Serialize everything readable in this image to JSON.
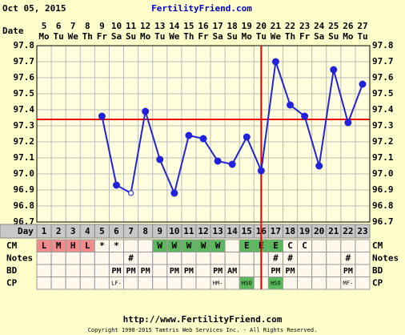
{
  "header": {
    "date": "Oct 05, 2015",
    "site": "FertilityFriend.com"
  },
  "chart_data": {
    "type": "line",
    "date_label": "Date",
    "dates": [
      5,
      6,
      7,
      8,
      9,
      10,
      11,
      12,
      13,
      14,
      15,
      16,
      17,
      18,
      19,
      20,
      21,
      22,
      23,
      24,
      25,
      26,
      27
    ],
    "weekdays": [
      "Mo",
      "Tu",
      "We",
      "Th",
      "Fr",
      "Sa",
      "Su",
      "Mo",
      "Tu",
      "We",
      "Th",
      "Fr",
      "Sa",
      "Su",
      "Mo",
      "Tu",
      "We",
      "Th",
      "Fr",
      "Sa",
      "Su",
      "Mo",
      "Tu"
    ],
    "day_label": "Day",
    "days": [
      1,
      2,
      3,
      4,
      5,
      6,
      7,
      8,
      9,
      10,
      11,
      12,
      13,
      14,
      15,
      16,
      17,
      18,
      19,
      20,
      21,
      22,
      23
    ],
    "values": [
      null,
      null,
      null,
      null,
      97.36,
      96.93,
      96.88,
      97.39,
      97.09,
      96.88,
      97.24,
      97.22,
      97.08,
      97.06,
      97.23,
      97.02,
      97.7,
      97.43,
      97.36,
      97.05,
      97.65,
      97.32,
      97.56
    ],
    "color": "#2222dd",
    "hollow_days": [
      7
    ],
    "coverline": 97.34,
    "ovulation_day": 16,
    "marker_line_color": "#ee0000",
    "ylim": [
      96.7,
      97.8
    ],
    "yticks": [
      96.7,
      96.8,
      96.9,
      {
        "value": 97.0,
        "label": "97.0"
      },
      97.1,
      97.2,
      97.3,
      97.4,
      97.5,
      97.6,
      97.7,
      97.8
    ],
    "grid": true,
    "rows": [
      {
        "label": "CM",
        "cells": [
          "L",
          "M",
          "H",
          "L",
          "*",
          "*",
          null,
          null,
          "W",
          "W",
          "W",
          "W",
          "W",
          null,
          "E",
          "E",
          "E",
          "C",
          "C",
          null,
          null,
          null,
          null
        ]
      },
      {
        "label": "Notes",
        "cells": [
          null,
          null,
          null,
          null,
          null,
          null,
          "#",
          null,
          null,
          null,
          null,
          null,
          null,
          null,
          null,
          null,
          "#",
          "#",
          null,
          null,
          null,
          "#",
          null
        ]
      },
      {
        "label": "BD",
        "cells": [
          null,
          null,
          null,
          null,
          null,
          "PM",
          "PM",
          "PM",
          null,
          "PM",
          "PM",
          null,
          "PM",
          "AM",
          null,
          null,
          "PM",
          "PM",
          null,
          null,
          null,
          "PM",
          null
        ]
      },
      {
        "label": "CP",
        "cells": [
          null,
          null,
          null,
          null,
          null,
          "LF-",
          null,
          null,
          null,
          null,
          null,
          null,
          "HM-",
          null,
          "HSO",
          null,
          "HSO",
          null,
          null,
          null,
          null,
          "MF-",
          null
        ]
      }
    ],
    "cell_colors": {
      "L": "#f08c8c",
      "M": "#f08c8c",
      "H": "#f08c8c",
      "W": "#5cb85c",
      "E": "#5cb85c",
      "HSO": "#5cb85c"
    }
  },
  "footer": {
    "url": "http://www.FertilityFriend.com",
    "copyright": "Copyright 1998-2015 Tamtris Web Services Inc. - All Rights Reserved."
  }
}
